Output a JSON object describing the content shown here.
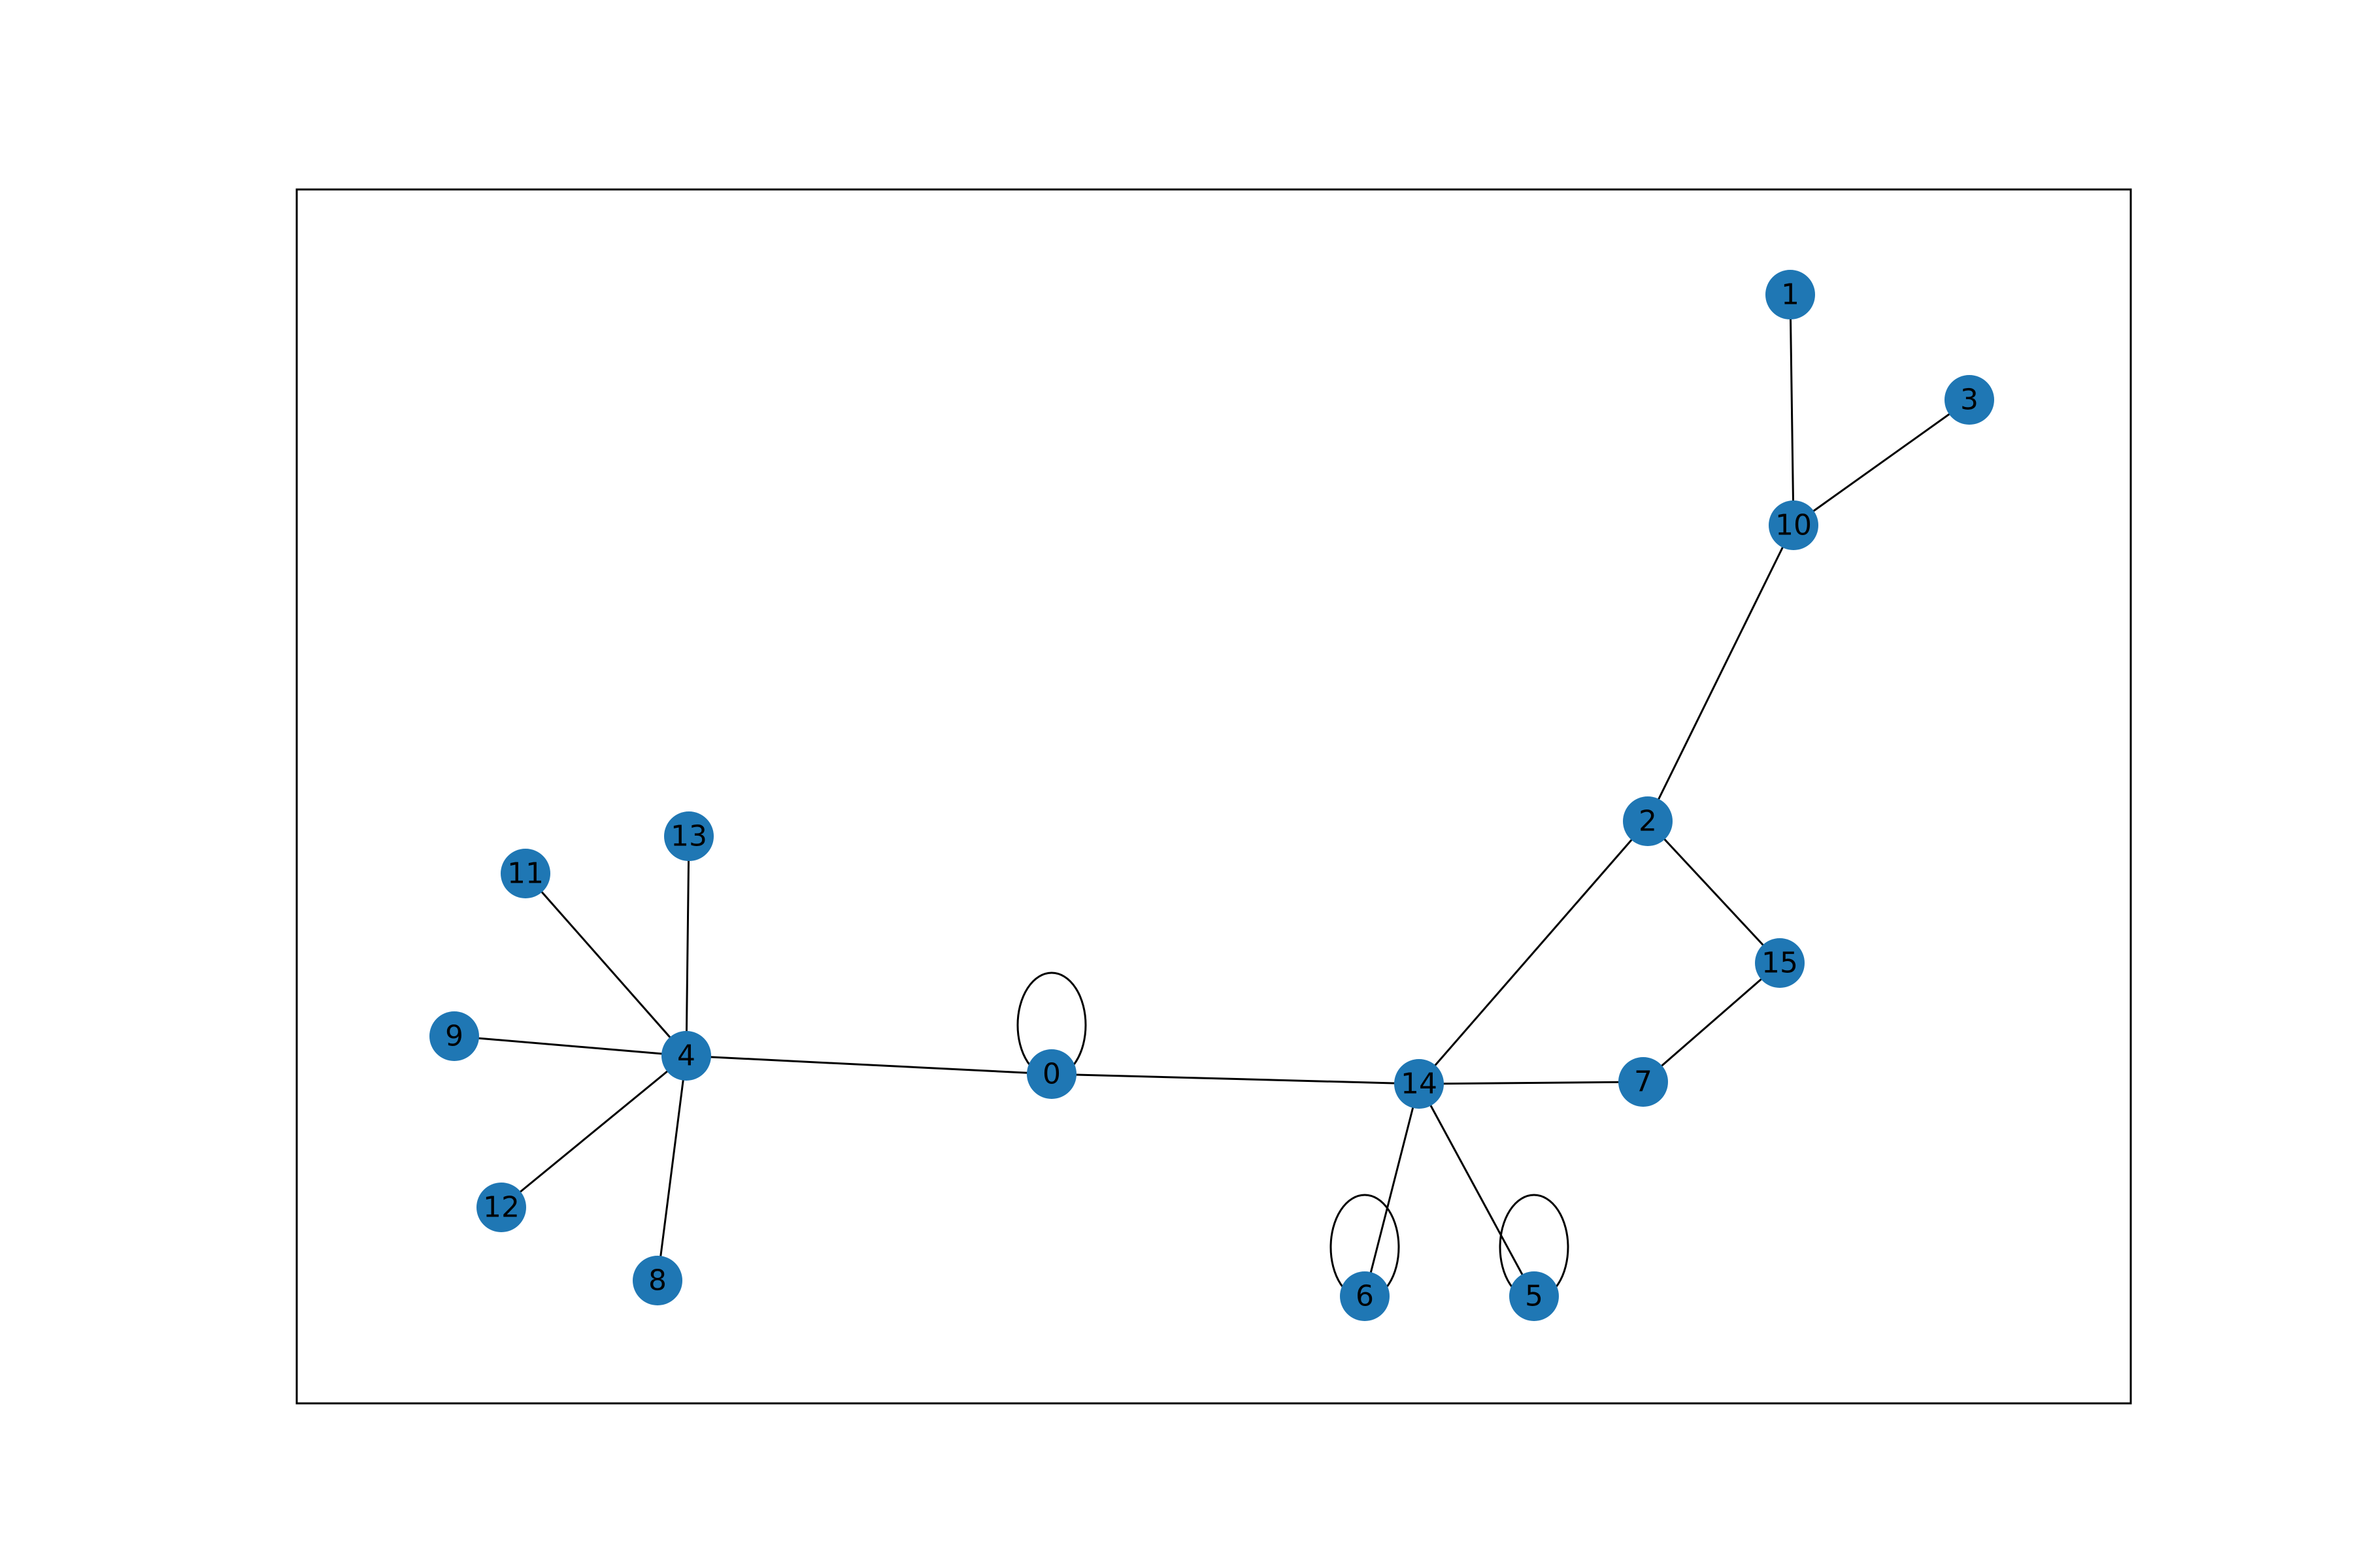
{
  "node_color": "#1f77b4",
  "edge_color": "#000000",
  "frame_color": "#000000",
  "nodes": [
    {
      "id": "0",
      "label": "0"
    },
    {
      "id": "1",
      "label": "1"
    },
    {
      "id": "2",
      "label": "2"
    },
    {
      "id": "3",
      "label": "3"
    },
    {
      "id": "4",
      "label": "4"
    },
    {
      "id": "5",
      "label": "5"
    },
    {
      "id": "6",
      "label": "6"
    },
    {
      "id": "7",
      "label": "7"
    },
    {
      "id": "8",
      "label": "8"
    },
    {
      "id": "9",
      "label": "9"
    },
    {
      "id": "10",
      "label": "10"
    },
    {
      "id": "11",
      "label": "11"
    },
    {
      "id": "12",
      "label": "12"
    },
    {
      "id": "13",
      "label": "13"
    },
    {
      "id": "14",
      "label": "14"
    },
    {
      "id": "15",
      "label": "15"
    }
  ],
  "edges": [
    [
      "1",
      "10"
    ],
    [
      "3",
      "10"
    ],
    [
      "10",
      "2"
    ],
    [
      "2",
      "15"
    ],
    [
      "2",
      "14"
    ],
    [
      "15",
      "7"
    ],
    [
      "7",
      "14"
    ],
    [
      "14",
      "0"
    ],
    [
      "14",
      "6"
    ],
    [
      "14",
      "5"
    ],
    [
      "0",
      "4"
    ],
    [
      "4",
      "11"
    ],
    [
      "4",
      "13"
    ],
    [
      "4",
      "9"
    ],
    [
      "4",
      "12"
    ],
    [
      "4",
      "8"
    ]
  ],
  "self_loops": [
    "0",
    "6",
    "5"
  ]
}
